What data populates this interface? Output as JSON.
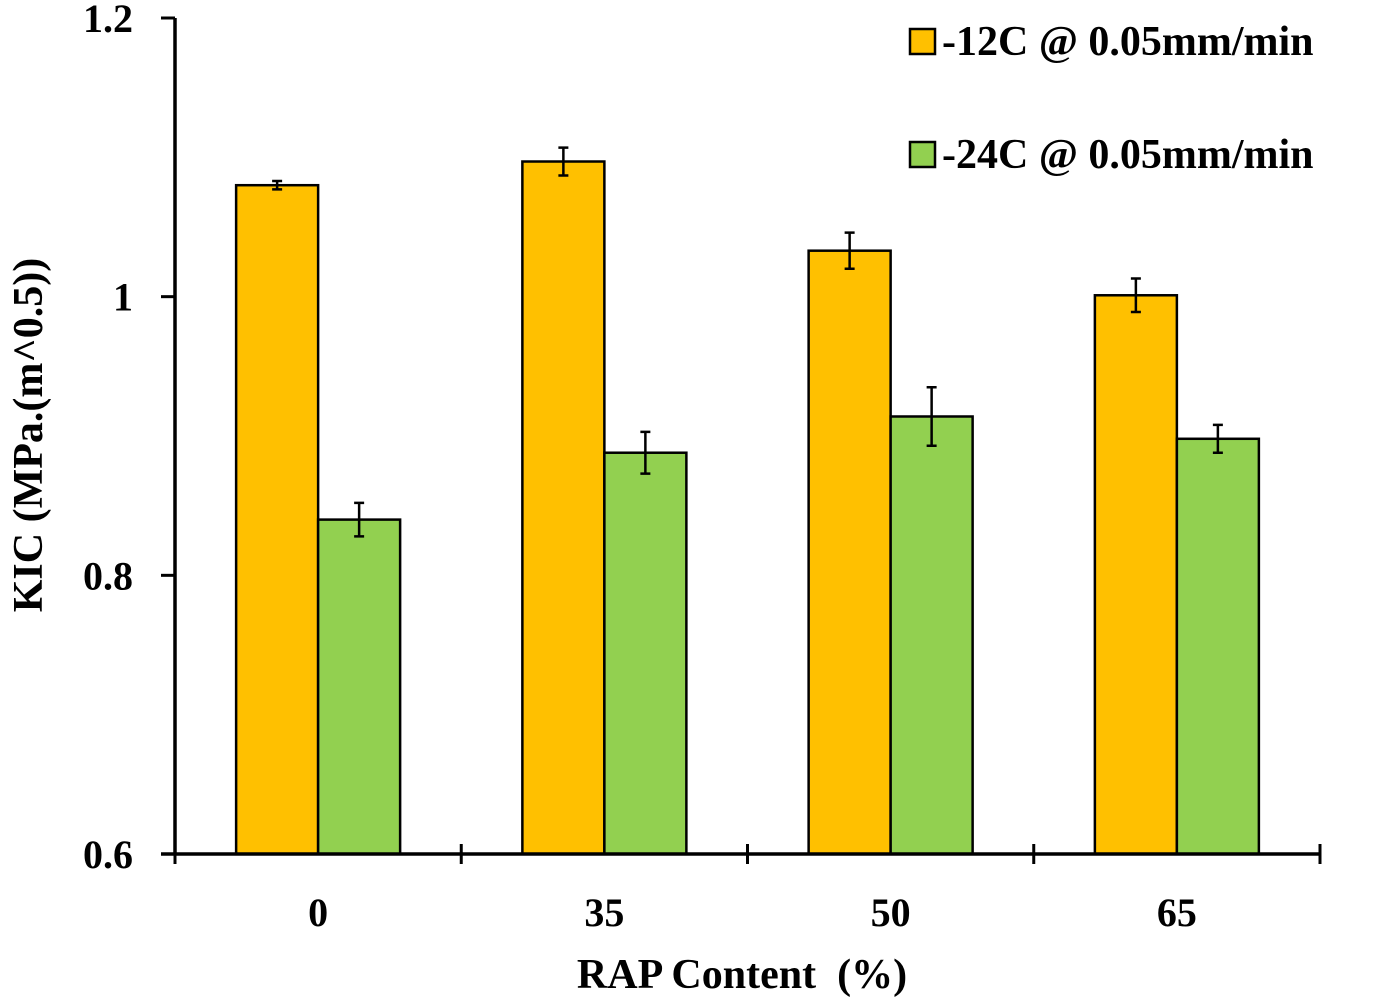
{
  "chart_data": {
    "type": "bar",
    "title": "",
    "xlabel": "RAP Content  (%)",
    "ylabel": "KIC (MPa.(m^0.5))",
    "categories": [
      "0",
      "35",
      "50",
      "65"
    ],
    "ylim": [
      0.6,
      1.2
    ],
    "yticks": [
      0.6,
      0.8,
      1.0,
      1.2
    ],
    "ytick_labels": [
      "0.6",
      "0.8",
      "1",
      "1.2"
    ],
    "grid": false,
    "legend_position": "top-right",
    "series": [
      {
        "name": "-12C @ 0.05mm/min",
        "color": "#FFC000",
        "values": [
          1.08,
          1.097,
          1.033,
          1.001
        ],
        "errors": [
          0.003,
          0.01,
          0.013,
          0.012
        ]
      },
      {
        "name": "-24C @ 0.05mm/min",
        "color": "#92D050",
        "values": [
          0.84,
          0.888,
          0.914,
          0.898
        ],
        "errors": [
          0.012,
          0.015,
          0.021,
          0.01
        ]
      }
    ]
  }
}
